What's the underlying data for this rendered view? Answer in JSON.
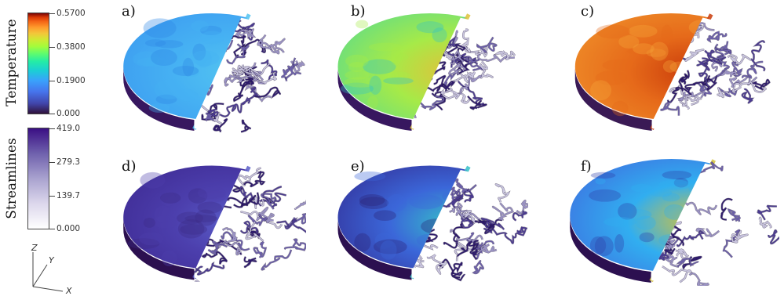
{
  "colorbars": {
    "temperature": {
      "title": "Temperature",
      "ticks": [
        "0.5700",
        "0.3800",
        "0.1900",
        "0.000"
      ]
    },
    "streamlines": {
      "title": "Streamlines",
      "ticks": [
        "419.0",
        "279.3",
        "139.7",
        "0.000"
      ]
    }
  },
  "axes_triad": {
    "x": "X",
    "y": "Y",
    "z": "Z"
  },
  "panels": [
    {
      "label": "a)",
      "base": "#3c9bf0",
      "mid": "#46b1f3",
      "hot": "#52c3f0",
      "spot": "#2f86e4",
      "side": "#37175f"
    },
    {
      "label": "b)",
      "base": "#5fdc88",
      "mid": "#a6ea48",
      "hot": "#e0c23a",
      "spot": "#33c2c6",
      "side": "#37175f"
    },
    {
      "label": "c)",
      "base": "#ef8f2a",
      "mid": "#e66a1a",
      "hot": "#c93b0a",
      "spot": "#f6a53a",
      "side": "#3a1a55"
    },
    {
      "label": "d)",
      "base": "#3f2b94",
      "mid": "#4c3fad",
      "hot": "#5a5dc8",
      "spot": "#3b2a86",
      "side": "#2c1050"
    },
    {
      "label": "e)",
      "base": "#34329a",
      "mid": "#3b67d9",
      "hot": "#35c0c8",
      "spot": "#2b2275",
      "side": "#2c1050"
    },
    {
      "label": "f)",
      "base": "#3e6fe0",
      "mid": "#31aef0",
      "hot": "#d5c23a",
      "spot": "#2d3fa8",
      "side": "#2c1050"
    }
  ]
}
